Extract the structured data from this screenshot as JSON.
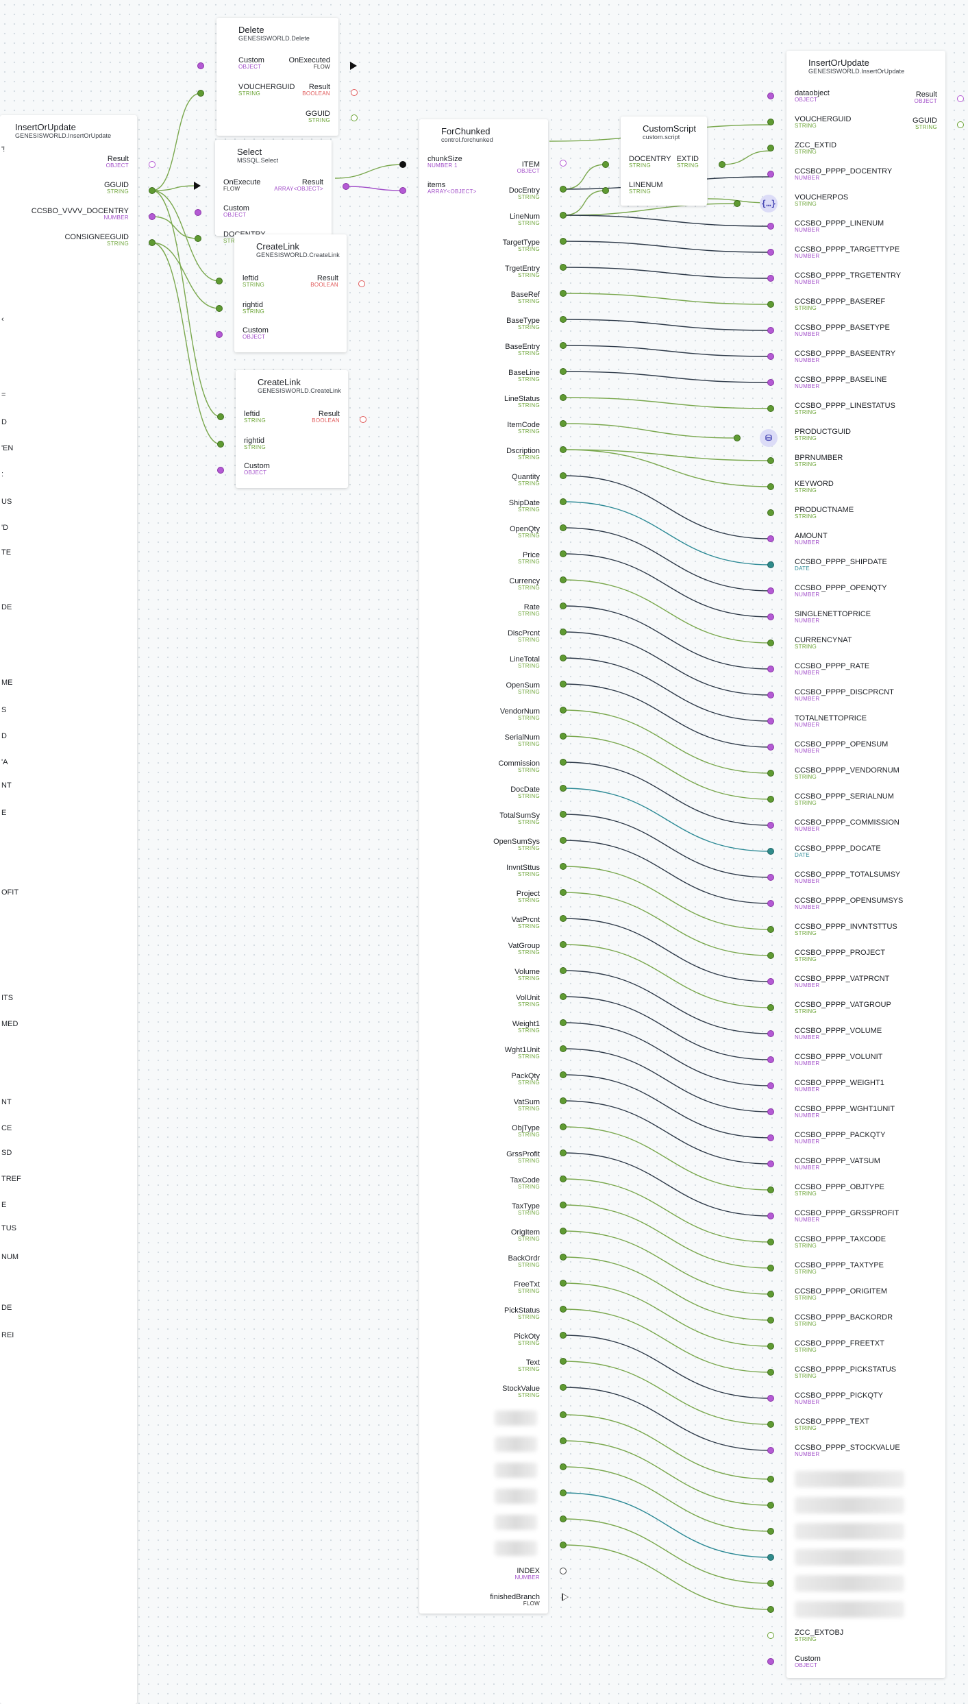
{
  "nodes": {
    "delete": {
      "title": "Delete",
      "subtitle": "GENESISWORLD.Delete",
      "in": [
        {
          "name": "Custom",
          "type": "OBJECT"
        },
        {
          "name": "VOUCHERGUID",
          "type": "STRING"
        }
      ],
      "out": [
        {
          "name": "OnExecuted",
          "type": "FLOW"
        },
        {
          "name": "Result",
          "type": "BOOLEAN"
        },
        {
          "name": "GGUID",
          "type": "STRING"
        }
      ]
    },
    "select": {
      "title": "Select",
      "subtitle": "MSSQL.Select",
      "in": [
        {
          "name": "OnExecute",
          "type": "FLOW"
        },
        {
          "name": "Custom",
          "type": "OBJECT"
        },
        {
          "name": "DOCENTRY",
          "type": "STRING"
        }
      ],
      "out": [
        {
          "name": "Result",
          "type": "ARRAY<OBJECT>"
        }
      ]
    },
    "createlink1": {
      "title": "CreateLink",
      "subtitle": "GENESISWORLD.CreateLink",
      "in": [
        {
          "name": "leftid",
          "type": "STRING"
        },
        {
          "name": "rightid",
          "type": "STRING"
        },
        {
          "name": "Custom",
          "type": "OBJECT"
        }
      ],
      "out": [
        {
          "name": "Result",
          "type": "BOOLEAN"
        }
      ]
    },
    "createlink2": {
      "title": "CreateLink",
      "subtitle": "GENESISWORLD.CreateLink",
      "in": [
        {
          "name": "leftid",
          "type": "STRING"
        },
        {
          "name": "rightid",
          "type": "STRING"
        },
        {
          "name": "Custom",
          "type": "OBJECT"
        }
      ],
      "out": [
        {
          "name": "Result",
          "type": "BOOLEAN"
        }
      ]
    },
    "insertLeft": {
      "title": "InsertOrUpdate",
      "subtitle": "GENESISWORLD.InsertOrUpdate",
      "out": [
        {
          "name": "Result",
          "type": "OBJECT"
        },
        {
          "name": "GGUID",
          "type": "STRING"
        },
        {
          "name": "CCSBO_VVVV_DOCENTRY",
          "type": "NUMBER"
        },
        {
          "name": "CONSIGNEEGUID",
          "type": "STRING"
        }
      ]
    },
    "forchunked": {
      "title": "ForChunked",
      "subtitle": "control.forchunked",
      "in": [
        {
          "name": "chunkSize",
          "type": "NUMBER 1"
        },
        {
          "name": "items",
          "type": "ARRAY<OBJECT>"
        }
      ],
      "out": [
        {
          "name": "ITEM",
          "type": "OBJECT"
        },
        {
          "name": "DocEntry",
          "type": "STRING"
        },
        {
          "name": "LineNum",
          "type": "STRING"
        },
        {
          "name": "TargetType",
          "type": "STRING"
        },
        {
          "name": "TrgetEntry",
          "type": "STRING"
        },
        {
          "name": "BaseRef",
          "type": "STRING"
        },
        {
          "name": "BaseType",
          "type": "STRING"
        },
        {
          "name": "BaseEntry",
          "type": "STRING"
        },
        {
          "name": "BaseLine",
          "type": "STRING"
        },
        {
          "name": "LineStatus",
          "type": "STRING"
        },
        {
          "name": "ItemCode",
          "type": "STRING"
        },
        {
          "name": "Dscription",
          "type": "STRING"
        },
        {
          "name": "Quantity",
          "type": "STRING"
        },
        {
          "name": "ShipDate",
          "type": "STRING"
        },
        {
          "name": "OpenQty",
          "type": "STRING"
        },
        {
          "name": "Price",
          "type": "STRING"
        },
        {
          "name": "Currency",
          "type": "STRING"
        },
        {
          "name": "Rate",
          "type": "STRING"
        },
        {
          "name": "DiscPrcnt",
          "type": "STRING"
        },
        {
          "name": "LineTotal",
          "type": "STRING"
        },
        {
          "name": "OpenSum",
          "type": "STRING"
        },
        {
          "name": "VendorNum",
          "type": "STRING"
        },
        {
          "name": "SerialNum",
          "type": "STRING"
        },
        {
          "name": "Commission",
          "type": "STRING"
        },
        {
          "name": "DocDate",
          "type": "STRING"
        },
        {
          "name": "TotalSumSy",
          "type": "STRING"
        },
        {
          "name": "OpenSumSys",
          "type": "STRING"
        },
        {
          "name": "InvntSttus",
          "type": "STRING"
        },
        {
          "name": "Project",
          "type": "STRING"
        },
        {
          "name": "VatPrcnt",
          "type": "STRING"
        },
        {
          "name": "VatGroup",
          "type": "STRING"
        },
        {
          "name": "Volume",
          "type": "STRING"
        },
        {
          "name": "VolUnit",
          "type": "STRING"
        },
        {
          "name": "Weight1",
          "type": "STRING"
        },
        {
          "name": "Wght1Unit",
          "type": "STRING"
        },
        {
          "name": "PackQty",
          "type": "STRING"
        },
        {
          "name": "VatSum",
          "type": "STRING"
        },
        {
          "name": "ObjType",
          "type": "STRING"
        },
        {
          "name": "GrssProfit",
          "type": "STRING"
        },
        {
          "name": "TaxCode",
          "type": "STRING"
        },
        {
          "name": "TaxType",
          "type": "STRING"
        },
        {
          "name": "OrigItem",
          "type": "STRING"
        },
        {
          "name": "BackOrdr",
          "type": "STRING"
        },
        {
          "name": "FreeTxt",
          "type": "STRING"
        },
        {
          "name": "PickStatus",
          "type": "STRING"
        },
        {
          "name": "PickOty",
          "type": "STRING"
        },
        {
          "name": "Text",
          "type": "STRING"
        },
        {
          "name": "StockValue",
          "type": "STRING"
        }
      ],
      "tail": [
        {
          "name": "INDEX",
          "type": "NUMBER"
        },
        {
          "name": "finishedBranch",
          "type": "FLOW"
        }
      ]
    },
    "customscript": {
      "title": "CustomScript",
      "subtitle": "custom.script",
      "in": [
        {
          "name": "DOCENTRY",
          "type": "STRING"
        },
        {
          "name": "LINENUM",
          "type": "STRING"
        }
      ],
      "out": [
        {
          "name": "EXTID",
          "type": "STRING"
        }
      ]
    },
    "insertRight": {
      "title": "InsertOrUpdate",
      "subtitle": "GENESISWORLD.InsertOrUpdate",
      "out": [
        {
          "name": "Result",
          "type": "OBJECT"
        },
        {
          "name": "GGUID",
          "type": "STRING"
        }
      ],
      "in": [
        {
          "name": "dataobject",
          "type": "OBJECT"
        },
        {
          "name": "VOUCHERGUID",
          "type": "STRING"
        },
        {
          "name": "ZCC_EXTID",
          "type": "STRING"
        },
        {
          "name": "CCSBO_PPPP_DOCENTRY",
          "type": "NUMBER"
        },
        {
          "name": "VOUCHERPOS",
          "type": "STRING"
        },
        {
          "name": "CCSBO_PPPP_LINENUM",
          "type": "NUMBER"
        },
        {
          "name": "CCSBO_PPPP_TARGETTYPE",
          "type": "NUMBER"
        },
        {
          "name": "CCSBO_PPPP_TRGETENTRY",
          "type": "NUMBER"
        },
        {
          "name": "CCSBO_PPPP_BASEREF",
          "type": "STRING"
        },
        {
          "name": "CCSBO_PPPP_BASETYPE",
          "type": "NUMBER"
        },
        {
          "name": "CCSBO_PPPP_BASEENTRY",
          "type": "NUMBER"
        },
        {
          "name": "CCSBO_PPPP_BASELINE",
          "type": "NUMBER"
        },
        {
          "name": "CCSBO_PPPP_LINESTATUS",
          "type": "STRING"
        },
        {
          "name": "PRODUCTGUID",
          "type": "STRING"
        },
        {
          "name": "BPRNUMBER",
          "type": "STRING"
        },
        {
          "name": "KEYWORD",
          "type": "STRING"
        },
        {
          "name": "PRODUCTNAME",
          "type": "STRING"
        },
        {
          "name": "AMOUNT",
          "type": "NUMBER"
        },
        {
          "name": "CCSBO_PPPP_SHIPDATE",
          "type": "DATE"
        },
        {
          "name": "CCSBO_PPPP_OPENQTY",
          "type": "NUMBER"
        },
        {
          "name": "SINGLENETTOPRICE",
          "type": "NUMBER"
        },
        {
          "name": "CURRENCYNAT",
          "type": "STRING"
        },
        {
          "name": "CCSBO_PPPP_RATE",
          "type": "NUMBER"
        },
        {
          "name": "CCSBO_PPPP_DISCPRCNT",
          "type": "NUMBER"
        },
        {
          "name": "TOTALNETTOPRICE",
          "type": "NUMBER"
        },
        {
          "name": "CCSBO_PPPP_OPENSUM",
          "type": "NUMBER"
        },
        {
          "name": "CCSBO_PPPP_VENDORNUM",
          "type": "STRING"
        },
        {
          "name": "CCSBO_PPPP_SERIALNUM",
          "type": "STRING"
        },
        {
          "name": "CCSBO_PPPP_COMMISSION",
          "type": "NUMBER"
        },
        {
          "name": "CCSBO_PPPP_DOCATE",
          "type": "DATE"
        },
        {
          "name": "CCSBO_PPPP_TOTALSUMSY",
          "type": "NUMBER"
        },
        {
          "name": "CCSBO_PPPP_OPENSUMSYS",
          "type": "NUMBER"
        },
        {
          "name": "CCSBO_PPPP_INVNTSTTUS",
          "type": "STRING"
        },
        {
          "name": "CCSBO_PPPP_PROJECT",
          "type": "STRING"
        },
        {
          "name": "CCSBO_PPPP_VATPRCNT",
          "type": "NUMBER"
        },
        {
          "name": "CCSBO_PPPP_VATGROUP",
          "type": "STRING"
        },
        {
          "name": "CCSBO_PPPP_VOLUME",
          "type": "NUMBER"
        },
        {
          "name": "CCSBO_PPPP_VOLUNIT",
          "type": "NUMBER"
        },
        {
          "name": "CCSBO_PPPP_WEIGHT1",
          "type": "NUMBER"
        },
        {
          "name": "CCSBO_PPPP_WGHT1UNIT",
          "type": "NUMBER"
        },
        {
          "name": "CCSBO_PPPP_PACKQTY",
          "type": "NUMBER"
        },
        {
          "name": "CCSBO_PPPP_VATSUM",
          "type": "NUMBER"
        },
        {
          "name": "CCSBO_PPPP_OBJTYPE",
          "type": "STRING"
        },
        {
          "name": "CCSBO_PPPP_GRSSPROFIT",
          "type": "NUMBER"
        },
        {
          "name": "CCSBO_PPPP_TAXCODE",
          "type": "STRING"
        },
        {
          "name": "CCSBO_PPPP_TAXTYPE",
          "type": "STRING"
        },
        {
          "name": "CCSBO_PPPP_ORIGITEM",
          "type": "STRING"
        },
        {
          "name": "CCSBO_PPPP_BACKORDR",
          "type": "STRING"
        },
        {
          "name": "CCSBO_PPPP_FREETXT",
          "type": "STRING"
        },
        {
          "name": "CCSBO_PPPP_PICKSTATUS",
          "type": "STRING"
        },
        {
          "name": "CCSBO_PPPP_PICKQTY",
          "type": "NUMBER"
        },
        {
          "name": "CCSBO_PPPP_TEXT",
          "type": "STRING"
        },
        {
          "name": "CCSBO_PPPP_STOCKVALUE",
          "type": "NUMBER"
        }
      ],
      "tail": [
        {
          "name": "ZCC_EXTOBJ",
          "type": "STRING"
        },
        {
          "name": "Custom",
          "type": "OBJECT"
        }
      ]
    }
  },
  "badges": {
    "script": "{…}",
    "query": "⛁"
  },
  "left_edge_fragments": [
    "'!",
    "‹",
    "=",
    "D",
    "'EN",
    ":",
    "US",
    "'D",
    "TE",
    "DE",
    "ME",
    "S",
    "D",
    "'A",
    "NT",
    "E",
    "OFIT",
    "ITS",
    "MED",
    "NT",
    "CE",
    "SD",
    "TREF",
    "E",
    "TUS",
    "NUM",
    "DE",
    "REI"
  ],
  "colors": {
    "string": "#6aa334",
    "number": "#a24fc9",
    "boolean": "#e05a5a",
    "date": "#2d8a96",
    "wire_green": "#7aa84e",
    "wire_dark": "#2f3b4a"
  }
}
